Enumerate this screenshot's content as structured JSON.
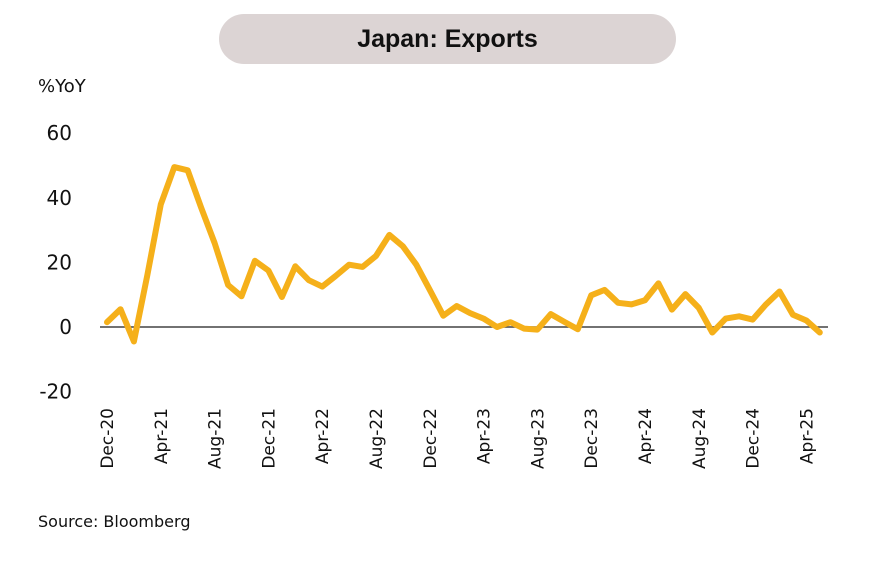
{
  "chart_data": {
    "type": "line",
    "title": "Japan: Exports",
    "ylabel": "%YoY",
    "xlabel": "",
    "ylim": [
      -20,
      60
    ],
    "yticks": [
      60,
      40,
      20,
      0,
      -20
    ],
    "xtick_labels": [
      "Dec-20",
      "Apr-21",
      "Aug-21",
      "Dec-21",
      "Apr-22",
      "Aug-22",
      "Dec-22",
      "Apr-23",
      "Aug-23",
      "Dec-23",
      "Apr-24",
      "Aug-24",
      "Dec-24",
      "Apr-25"
    ],
    "x": [
      "Dec-20",
      "Jan-21",
      "Feb-21",
      "Mar-21",
      "Apr-21",
      "May-21",
      "Jun-21",
      "Jul-21",
      "Aug-21",
      "Sep-21",
      "Oct-21",
      "Nov-21",
      "Dec-21",
      "Jan-22",
      "Feb-22",
      "Mar-22",
      "Apr-22",
      "May-22",
      "Jun-22",
      "Jul-22",
      "Aug-22",
      "Sep-22",
      "Oct-22",
      "Nov-22",
      "Dec-22",
      "Jan-23",
      "Feb-23",
      "Mar-23",
      "Apr-23",
      "May-23",
      "Jun-23",
      "Jul-23",
      "Aug-23",
      "Sep-23",
      "Oct-23",
      "Nov-23",
      "Dec-23",
      "Jan-24",
      "Feb-24",
      "Mar-24",
      "Apr-24",
      "May-24",
      "Jun-24",
      "Jul-24",
      "Aug-24",
      "Sep-24",
      "Oct-24",
      "Nov-24",
      "Dec-24",
      "Jan-25",
      "Feb-25",
      "Mar-25",
      "Apr-25",
      "May-25"
    ],
    "series": [
      {
        "name": "Exports",
        "color": "#f5b01a",
        "values": [
          1.5,
          5.5,
          -4.5,
          16,
          38,
          49.5,
          48.5,
          37,
          26,
          13,
          9.5,
          20.5,
          17.5,
          9.3,
          18.8,
          14.5,
          12.5,
          15.8,
          19.3,
          18.6,
          22,
          28.5,
          25,
          19.3,
          11.5,
          3.5,
          6.5,
          4.3,
          2.6,
          0,
          1.5,
          -0.5,
          -0.8,
          4,
          1.6,
          -0.7,
          9.8,
          11.5,
          7.5,
          7,
          8.3,
          13.5,
          5.4,
          10.2,
          5.9,
          -1.7,
          2.6,
          3.3,
          2.3,
          7,
          11,
          3.8,
          2,
          -1.7
        ]
      }
    ],
    "zero_line": true,
    "grid": false,
    "source": "Source: Bloomberg"
  }
}
